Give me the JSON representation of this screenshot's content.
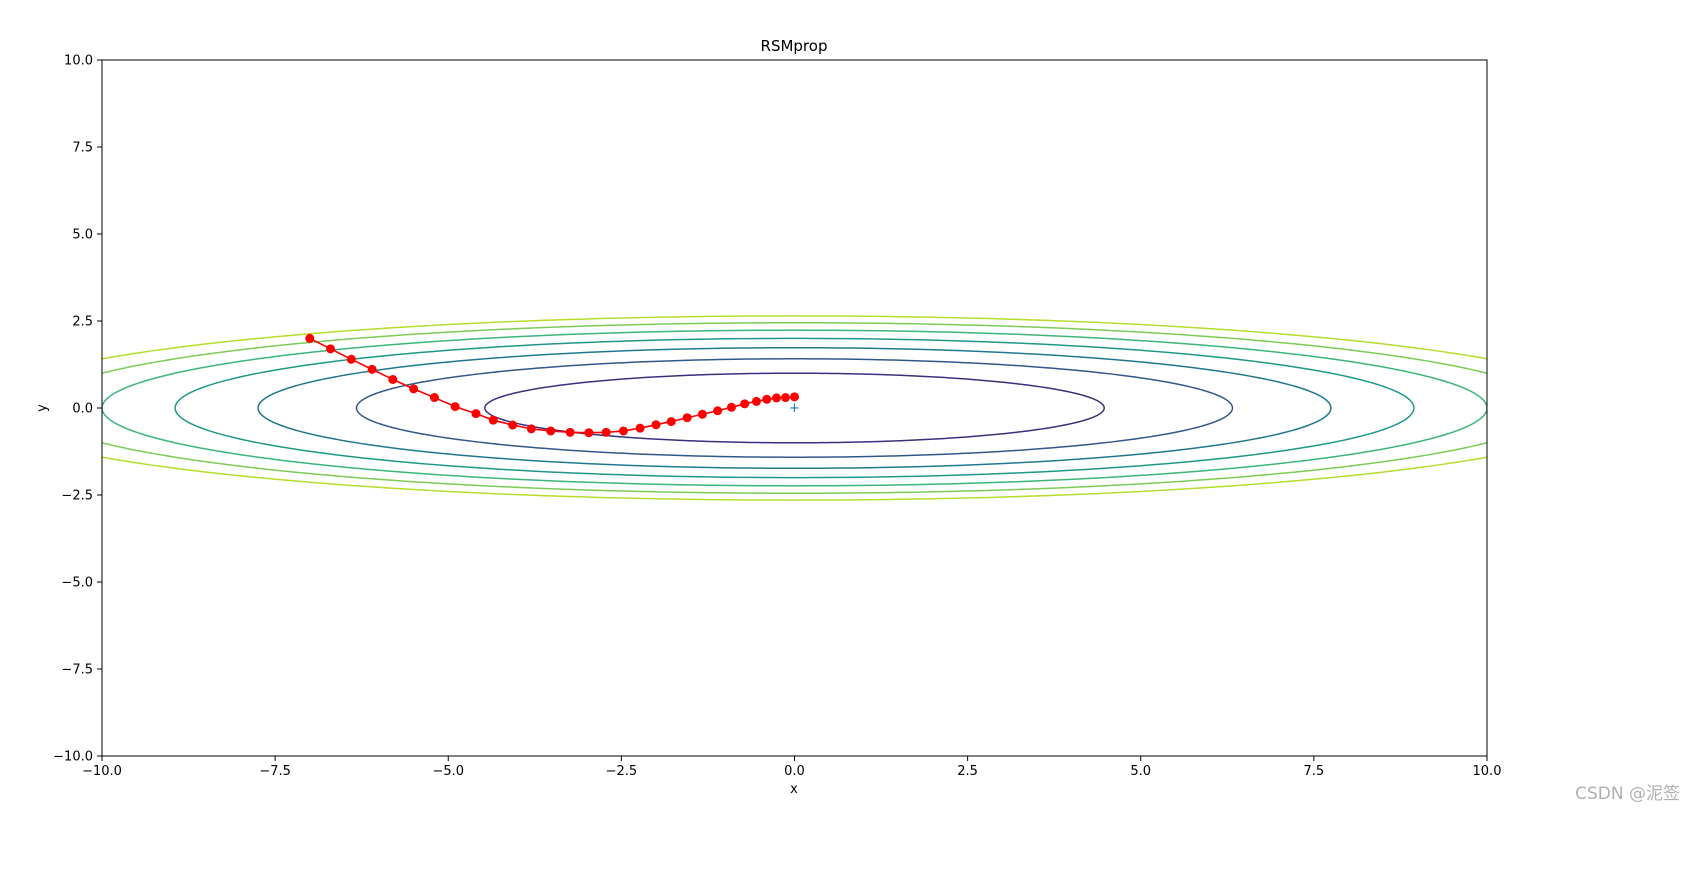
{
  "chart_data": {
    "type": "line",
    "title": "RSMprop",
    "xlabel": "x",
    "ylabel": "y",
    "xlim": [
      -10,
      10
    ],
    "ylim": [
      -10,
      10
    ],
    "xticks": [
      "−10.0",
      "−7.5",
      "−5.0",
      "−2.5",
      "0.0",
      "2.5",
      "5.0",
      "7.5",
      "10.0"
    ],
    "yticks": [
      "−10.0",
      "−7.5",
      "−5.0",
      "−2.5",
      "0.0",
      "2.5",
      "5.0",
      "7.5",
      "10.0"
    ],
    "grid": false,
    "function": "f(x, y) = x^2/20 + y^2",
    "contours": {
      "levels": [
        1,
        2,
        3,
        4,
        5,
        6,
        7
      ],
      "colors": [
        "#3b2f7e",
        "#31588d",
        "#21788e",
        "#1f988a",
        "#3eb57a",
        "#7ccc58",
        "#b5dd2b"
      ],
      "clip_top_y": 2.65
    },
    "minimum_marker": {
      "x": 0,
      "y": 0,
      "symbol": "+",
      "color": "#1f77b4"
    },
    "series": [
      {
        "color": "#ff0000",
        "marker": "o",
        "x": [
          -7.0,
          -6.7,
          -6.4,
          -6.1,
          -5.8,
          -5.5,
          -5.2,
          -4.9,
          -4.6,
          -4.35,
          -4.07,
          -3.8,
          -3.52,
          -3.24,
          -2.97,
          -2.72,
          -2.47,
          -2.23,
          -2.0,
          -1.78,
          -1.55,
          -1.33,
          -1.11,
          -0.91,
          -0.72,
          -0.55,
          -0.4,
          -0.26,
          -0.13,
          0.0
        ],
        "y": [
          2.0,
          1.7,
          1.4,
          1.11,
          0.82,
          0.55,
          0.3,
          0.04,
          -0.16,
          -0.35,
          -0.49,
          -0.6,
          -0.66,
          -0.7,
          -0.71,
          -0.7,
          -0.66,
          -0.58,
          -0.48,
          -0.39,
          -0.28,
          -0.18,
          -0.08,
          0.02,
          0.12,
          0.19,
          0.25,
          0.29,
          0.3,
          0.32
        ]
      }
    ]
  },
  "watermark": "CSDN @泥签"
}
